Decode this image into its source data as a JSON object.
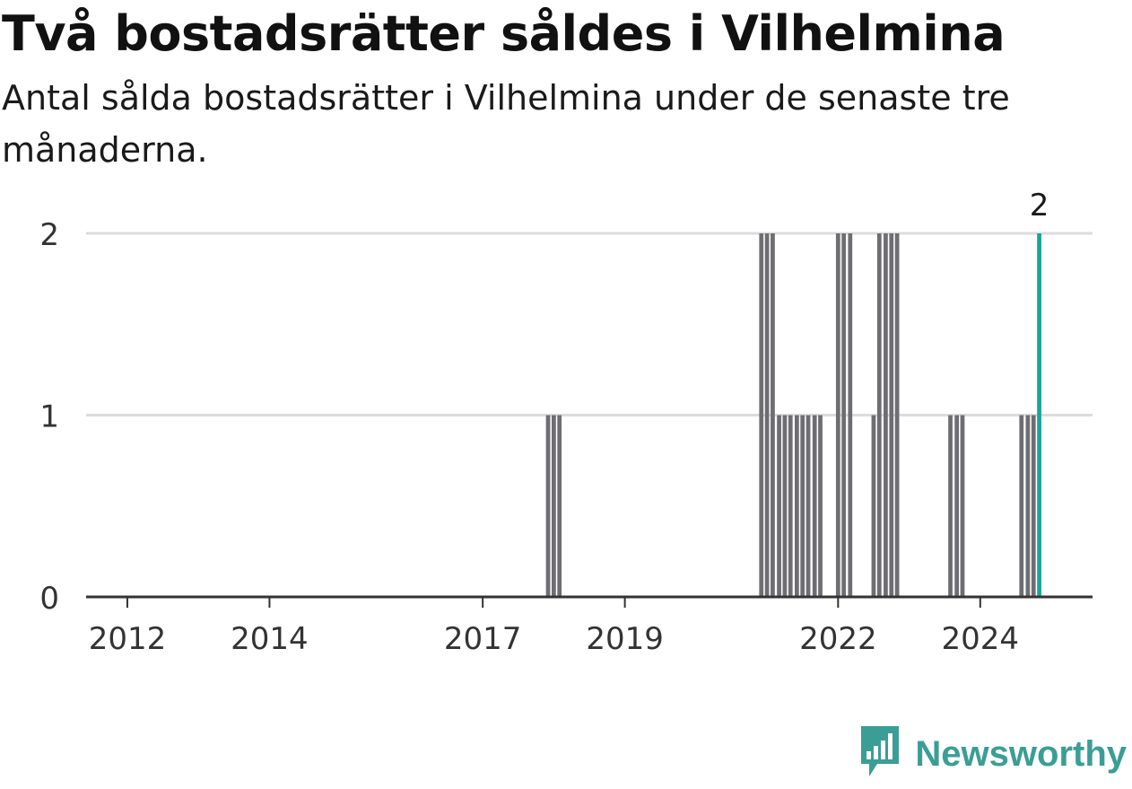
{
  "title": "Två bostadsrätter såldes i Vilhelmina",
  "subtitle": "Antal sålda bostadsrätter i Vilhelmina under de senaste tre månaderna.",
  "brand": {
    "name": "Newsworthy",
    "icon": "newsworthy-logo-icon",
    "color": "#3a9e96"
  },
  "chart_data": {
    "type": "bar",
    "x_tick_labels": [
      "2012",
      "2014",
      "2017",
      "2019",
      "2022",
      "2024"
    ],
    "x_tick_values": [
      2012.0,
      2014.0,
      2017.0,
      2019.0,
      2022.0,
      2024.0
    ],
    "y_ticks": [
      "0",
      "1",
      "2"
    ],
    "ylim": [
      0,
      2
    ],
    "xlim": [
      2011.42,
      2025.58
    ],
    "grid": true,
    "bar_color": "#6e6d72",
    "highlight_color": "#18a59a",
    "last_value_label": "2",
    "series": [
      {
        "x": [
          2017.92,
          2018.0,
          2018.08,
          2020.92,
          2021.0,
          2021.08,
          2021.17,
          2021.25,
          2021.33,
          2021.42,
          2021.5,
          2021.58,
          2021.67,
          2021.75,
          2022.0,
          2022.08,
          2022.17,
          2022.5,
          2022.58,
          2022.67,
          2022.75,
          2022.83,
          2023.58,
          2023.67,
          2023.75,
          2024.58,
          2024.67,
          2024.75,
          2024.83
        ],
        "values": [
          1,
          1,
          1,
          2,
          2,
          2,
          1,
          1,
          1,
          1,
          1,
          1,
          1,
          1,
          2,
          2,
          2,
          1,
          2,
          2,
          2,
          2,
          1,
          1,
          1,
          1,
          1,
          1,
          2
        ]
      }
    ]
  }
}
